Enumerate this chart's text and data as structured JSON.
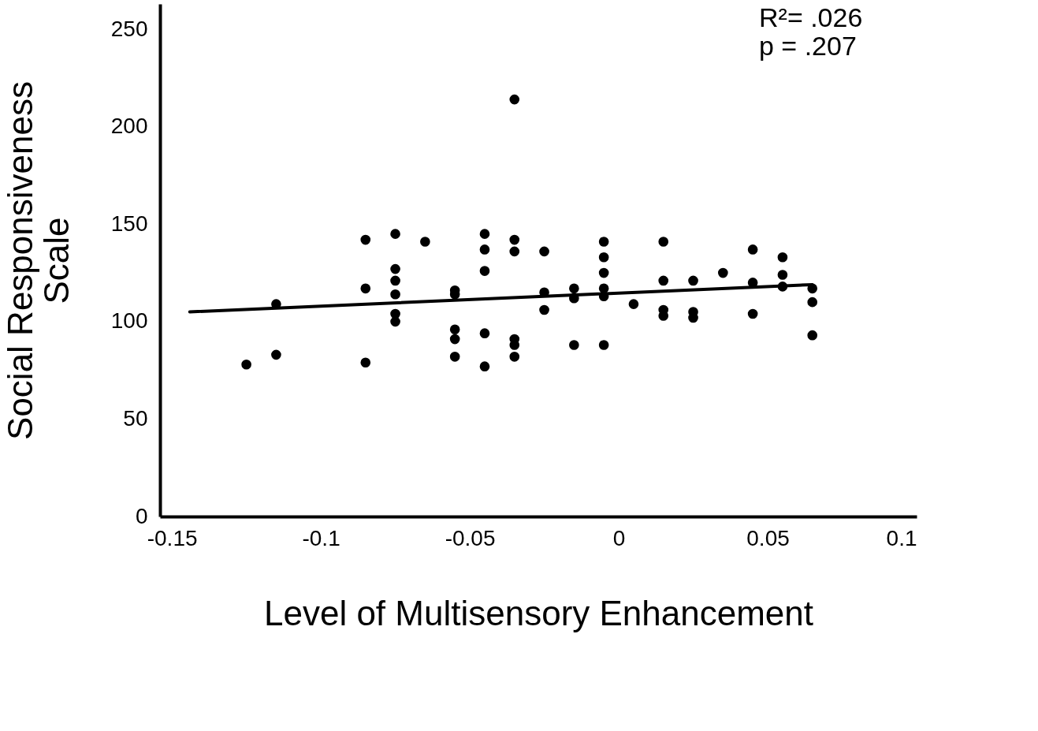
{
  "chart_data": {
    "type": "scatter",
    "xlabel": "Level of Multisensory Enhancement",
    "ylabel": "Social Responsiveness\nScale",
    "annotations": [
      "R²= .026",
      "p = .207"
    ],
    "xlim": [
      -0.154,
      0.1
    ],
    "xticks": [
      -0.15,
      -0.1,
      -0.05,
      0,
      0.05,
      0.1
    ],
    "ylim": [
      0,
      263
    ],
    "yticks": [
      0,
      50,
      100,
      150,
      200,
      250
    ],
    "grid": false,
    "series": [
      {
        "color": "#000000",
        "marker": "circle",
        "x": [
          -0.125,
          -0.115,
          -0.115,
          -0.085,
          -0.085,
          -0.085,
          -0.075,
          -0.075,
          -0.075,
          -0.075,
          -0.075,
          -0.075,
          -0.065,
          -0.055,
          -0.055,
          -0.055,
          -0.055,
          -0.055,
          -0.045,
          -0.045,
          -0.045,
          -0.045,
          -0.045,
          -0.035,
          -0.035,
          -0.035,
          -0.035,
          -0.035,
          -0.035,
          -0.025,
          -0.025,
          -0.025,
          -0.015,
          -0.015,
          -0.015,
          -0.005,
          -0.005,
          -0.005,
          -0.005,
          -0.005,
          -0.005,
          0.005,
          0.015,
          0.015,
          0.015,
          0.015,
          0.025,
          0.025,
          0.025,
          0.035,
          0.045,
          0.045,
          0.045,
          0.055,
          0.055,
          0.055,
          0.065,
          0.065,
          0.065
        ],
        "values": [
          78,
          109,
          83,
          142,
          117,
          79,
          145,
          127,
          121,
          114,
          104,
          100,
          141,
          116,
          114,
          96,
          91,
          82,
          145,
          137,
          126,
          94,
          77,
          214,
          142,
          136,
          91,
          88,
          82,
          136,
          115,
          106,
          117,
          112,
          88,
          141,
          133,
          125,
          117,
          113,
          88,
          109,
          141,
          121,
          106,
          103,
          121,
          105,
          102,
          125,
          137,
          120,
          104,
          133,
          124,
          118,
          117,
          110,
          93
        ]
      },
      {
        "type": "line",
        "color": "#000000",
        "line_style": "solid",
        "x": [
          -0.144,
          0.065
        ],
        "values": [
          105,
          119
        ]
      }
    ]
  }
}
